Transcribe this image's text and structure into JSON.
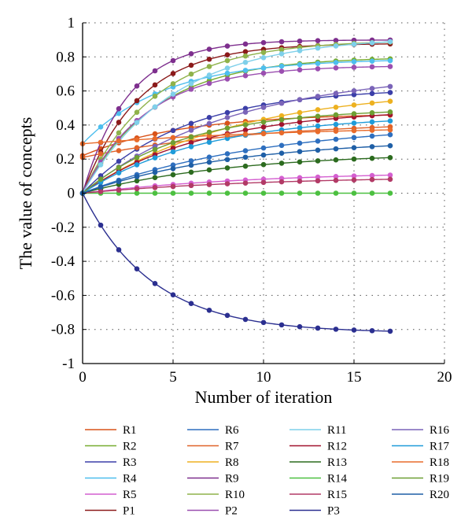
{
  "chart_data": {
    "type": "line",
    "title": "",
    "xlabel": "Number of iteration",
    "ylabel": "The value of concepts",
    "xlim": [
      0,
      20
    ],
    "ylim": [
      -1,
      1
    ],
    "xticks": [
      0,
      5,
      10,
      15,
      20
    ],
    "yticks": [
      -1,
      -0.8,
      -0.6,
      -0.4,
      -0.2,
      0,
      0.2,
      0.4,
      0.6,
      0.8,
      1
    ],
    "xtick_labels": [
      "0",
      "5",
      "10",
      "15",
      "20"
    ],
    "ytick_labels": [
      "-1",
      "-0.8",
      "-0.6",
      "-0.4",
      "-0.2",
      "0",
      "0.2",
      "0.4",
      "0.6",
      "0.8",
      "1"
    ],
    "grid": true,
    "legend_position": "bottom",
    "x": [
      0,
      1,
      2,
      3,
      4,
      5,
      6,
      7,
      8,
      9,
      10,
      11,
      12,
      13,
      14,
      15,
      16,
      17
    ],
    "series": [
      {
        "name": "R1",
        "color": "#d95319",
        "start": 0.22,
        "end": 0.47,
        "rate": 0.18
      },
      {
        "name": "R2",
        "color": "#77ac30",
        "start": 0,
        "end": 0.8,
        "rate": 0.25
      },
      {
        "name": "R3",
        "color": "#3b3fa8",
        "start": 0,
        "end": 0.62,
        "rate": 0.18
      },
      {
        "name": "R4",
        "color": "#4dbeee",
        "start": 0.29,
        "end": 0.79,
        "rate": 0.22
      },
      {
        "name": "R5",
        "color": "#d45fd0",
        "start": 0,
        "end": 0.13,
        "rate": 0.1
      },
      {
        "name": "P1",
        "color": "#8b1a1a",
        "start": 0,
        "end": 0.88,
        "rate": 0.32
      },
      {
        "name": "R6",
        "color": "#2e6fbf",
        "start": 0,
        "end": 0.42,
        "rate": 0.1
      },
      {
        "name": "R7",
        "color": "#e0632a",
        "start": 0.21,
        "end": 0.43,
        "rate": 0.1
      },
      {
        "name": "R8",
        "color": "#edb120",
        "start": 0,
        "end": 0.62,
        "rate": 0.12
      },
      {
        "name": "R9",
        "color": "#7e2f8e",
        "start": 0,
        "end": 0.9,
        "rate": 0.4
      },
      {
        "name": "R10",
        "color": "#8fb24a",
        "start": 0,
        "end": 0.9,
        "rate": 0.25
      },
      {
        "name": "P2",
        "color": "#9b4fb0",
        "start": 0,
        "end": 0.75,
        "rate": 0.28
      },
      {
        "name": "R11",
        "color": "#7fd0ea",
        "start": 0,
        "end": 0.92,
        "rate": 0.2
      },
      {
        "name": "R12",
        "color": "#a2142f",
        "start": 0,
        "end": 0.5,
        "rate": 0.15
      },
      {
        "name": "R13",
        "color": "#2c6b1f",
        "start": 0,
        "end": 0.24,
        "rate": 0.12
      },
      {
        "name": "R14",
        "color": "#4cc040",
        "start": 0,
        "end": 0,
        "rate": 0.1
      },
      {
        "name": "R15",
        "color": "#b23a66",
        "start": 0,
        "end": 0.1,
        "rate": 0.1
      },
      {
        "name": "P3",
        "color": "#2b2f90",
        "start": 0,
        "end": -0.82,
        "rate": 0.26
      },
      {
        "name": "R16",
        "color": "#7a64b8",
        "start": 0,
        "end": 0.72,
        "rate": 0.12
      },
      {
        "name": "R17",
        "color": "#1f9bd9",
        "start": 0,
        "end": 0.46,
        "rate": 0.15
      },
      {
        "name": "R18",
        "color": "#e86b2b",
        "start": 0.29,
        "end": 0.4,
        "rate": 0.08
      },
      {
        "name": "R19",
        "color": "#6e9f33",
        "start": 0,
        "end": 0.5,
        "rate": 0.18
      },
      {
        "name": "R20",
        "color": "#1f5fa6",
        "start": 0,
        "end": 0.32,
        "rate": 0.12
      }
    ]
  },
  "legend_columns": [
    [
      "R1",
      "R2",
      "R3",
      "R4",
      "R5",
      "P1"
    ],
    [
      "R6",
      "R7",
      "R8",
      "R9",
      "R10",
      "P2"
    ],
    [
      "R11",
      "R12",
      "R13",
      "R14",
      "R15",
      "P3"
    ],
    [
      "R16",
      "R17",
      "R18",
      "R19",
      "R20"
    ]
  ]
}
